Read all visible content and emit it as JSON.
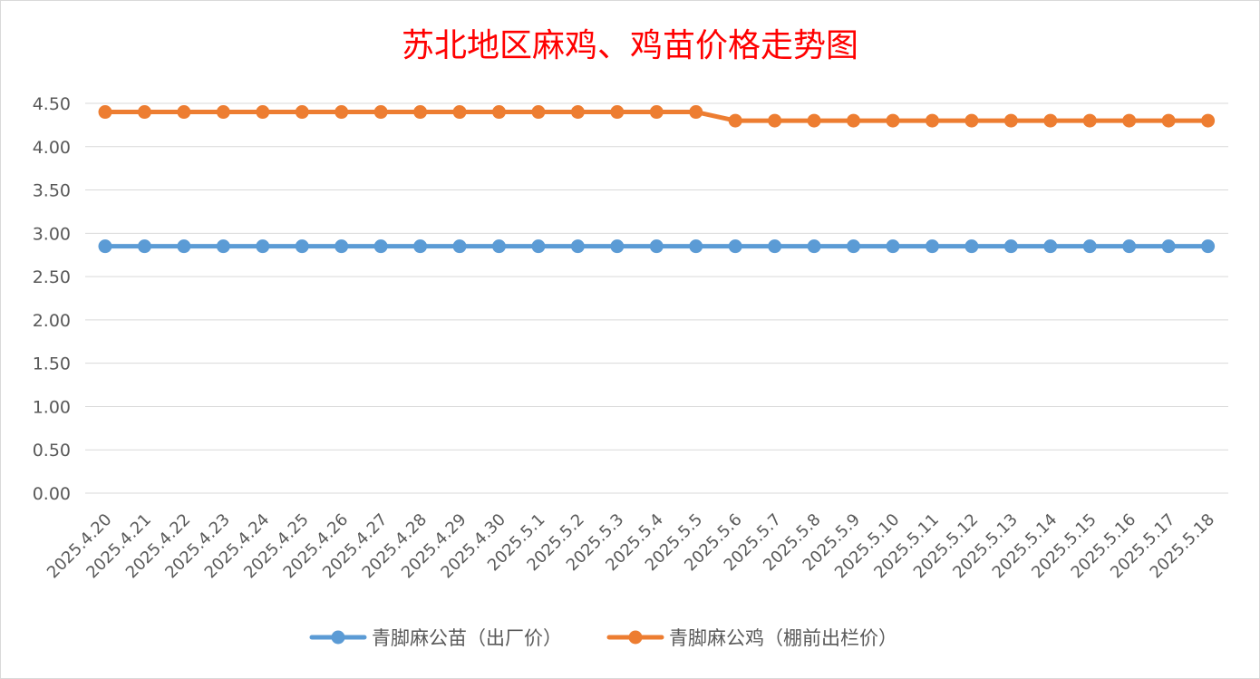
{
  "chart_data": {
    "type": "line",
    "title": "苏北地区麻鸡、鸡苗价格走势图",
    "xlabel": "",
    "ylabel": "",
    "ylim": [
      0,
      4.5
    ],
    "yticks": [
      "0.00",
      "0.50",
      "1.00",
      "1.50",
      "2.00",
      "2.50",
      "3.00",
      "3.50",
      "4.00",
      "4.50"
    ],
    "categories": [
      "2025.4.20",
      "2025.4.21",
      "2025.4.22",
      "2025.4.23",
      "2025.4.24",
      "2025.4.25",
      "2025.4.26",
      "2025.4.27",
      "2025.4.28",
      "2025.4.29",
      "2025.4.30",
      "2025.5.1",
      "2025.5.2",
      "2025.5.3",
      "2025.5.4",
      "2025.5.5",
      "2025.5.6",
      "2025.5.7",
      "2025.5.8",
      "2025.5.9",
      "2025.5.10",
      "2025.5.11",
      "2025.5.12",
      "2025.5.13",
      "2025.5.14",
      "2025.5.15",
      "2025.5.16",
      "2025.5.17",
      "2025.5.18"
    ],
    "series": [
      {
        "name": "青脚麻公苗（出厂价）",
        "color": "#5b9bd5",
        "values": [
          2.85,
          2.85,
          2.85,
          2.85,
          2.85,
          2.85,
          2.85,
          2.85,
          2.85,
          2.85,
          2.85,
          2.85,
          2.85,
          2.85,
          2.85,
          2.85,
          2.85,
          2.85,
          2.85,
          2.85,
          2.85,
          2.85,
          2.85,
          2.85,
          2.85,
          2.85,
          2.85,
          2.85,
          2.85
        ]
      },
      {
        "name": "青脚麻公鸡（棚前出栏价）",
        "color": "#ed7d31",
        "values": [
          4.4,
          4.4,
          4.4,
          4.4,
          4.4,
          4.4,
          4.4,
          4.4,
          4.4,
          4.4,
          4.4,
          4.4,
          4.4,
          4.4,
          4.4,
          4.4,
          4.3,
          4.3,
          4.3,
          4.3,
          4.3,
          4.3,
          4.3,
          4.3,
          4.3,
          4.3,
          4.3,
          4.3,
          4.3
        ]
      }
    ],
    "grid": true,
    "legend": "bottom"
  }
}
